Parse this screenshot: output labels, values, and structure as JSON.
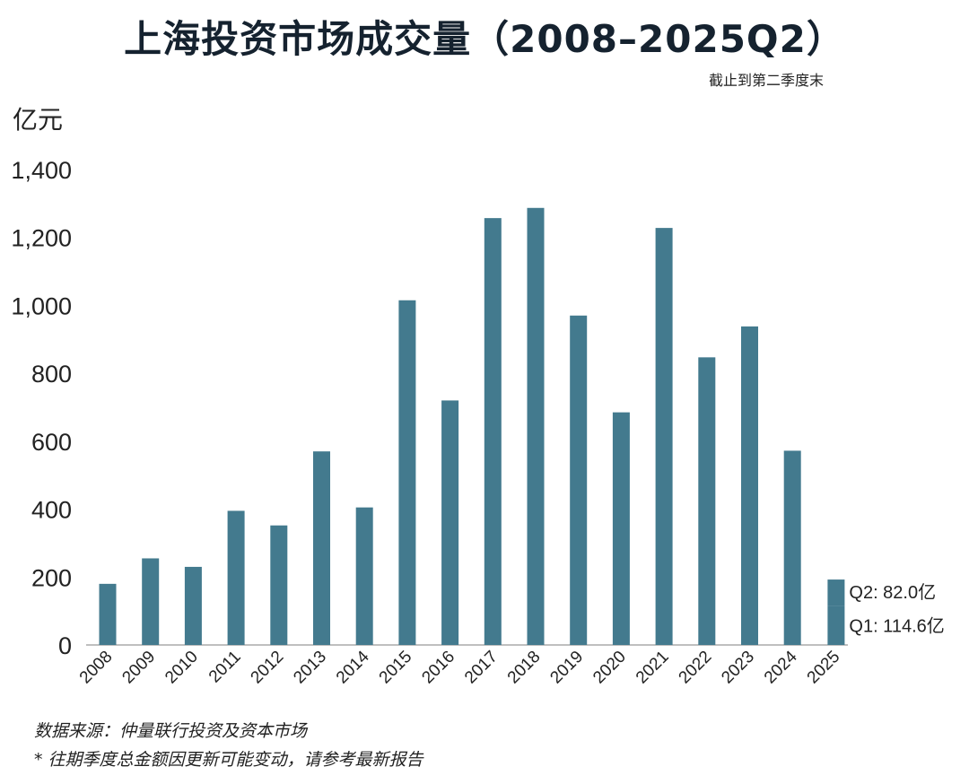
{
  "title": "上海投资市场成交量（2008–2025Q2）",
  "subtitle": "截止到第二季度末",
  "unit_label": "亿元",
  "source": "数据来源：仲量联行投资及资本市场",
  "note": "* 往期季度总金额因更新可能变动，请参考最新报告",
  "colors": {
    "bar": "#437a8e",
    "axis": "#aaaaaa",
    "text": "#222222"
  },
  "chart_data": {
    "type": "bar",
    "title": "上海投资市场成交量（2008–2025Q2）",
    "ylabel": "亿元",
    "ylim": [
      0,
      1400
    ],
    "yticks": [
      0,
      200,
      400,
      600,
      800,
      1000,
      1200,
      1400
    ],
    "ytick_labels": [
      "0",
      "200",
      "400",
      "600",
      "800",
      "1,000",
      "1,200",
      "1,400"
    ],
    "categories": [
      "2008",
      "2009",
      "2010",
      "2011",
      "2012",
      "2013",
      "2014",
      "2015",
      "2016",
      "2017",
      "2018",
      "2019",
      "2020",
      "2021",
      "2022",
      "2023",
      "2024",
      "2025"
    ],
    "values": [
      180,
      255,
      230,
      395,
      352,
      570,
      405,
      1015,
      720,
      1257,
      1287,
      970,
      685,
      1228,
      847,
      938,
      572,
      196.6
    ],
    "stacked_2025": [
      {
        "name": "Q1",
        "value": 114.6,
        "label": "Q1: 114.6亿"
      },
      {
        "name": "Q2",
        "value": 82.0,
        "label": "Q2: 82.0亿"
      }
    ],
    "grid": false
  }
}
